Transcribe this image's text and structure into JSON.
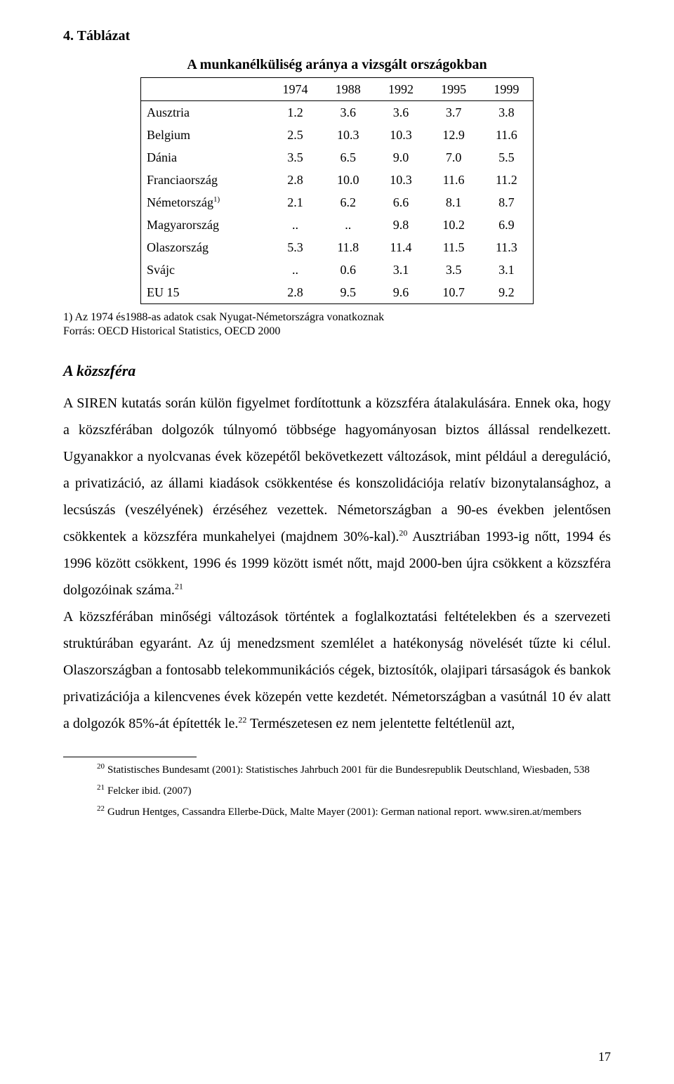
{
  "table_label": "4. Táblázat",
  "table": {
    "title": "A munkanélküliség aránya a vizsgált országokban",
    "columns": [
      "1974",
      "1988",
      "1992",
      "1995",
      "1999"
    ],
    "rows": [
      {
        "label": "Ausztria",
        "values": [
          "1.2",
          "3.6",
          "3.6",
          "3.7",
          "3.8"
        ]
      },
      {
        "label": "Belgium",
        "values": [
          "2.5",
          "10.3",
          "10.3",
          "12.9",
          "11.6"
        ]
      },
      {
        "label": "Dánia",
        "values": [
          "3.5",
          "6.5",
          "9.0",
          "7.0",
          "5.5"
        ]
      },
      {
        "label": "Franciaország",
        "values": [
          "2.8",
          "10.0",
          "10.3",
          "11.6",
          "11.2"
        ]
      },
      {
        "label": "Németország",
        "sup": "1)",
        "values": [
          "2.1",
          "6.2",
          "6.6",
          "8.1",
          "8.7"
        ]
      },
      {
        "label": "Magyarország",
        "values": [
          "..",
          "..",
          "9.8",
          "10.2",
          "6.9"
        ]
      },
      {
        "label": "Olaszország",
        "values": [
          "5.3",
          "11.8",
          "11.4",
          "11.5",
          "11.3"
        ]
      },
      {
        "label": "Svájc",
        "values": [
          "..",
          "0.6",
          "3.1",
          "3.5",
          "3.1"
        ]
      },
      {
        "label": "EU 15",
        "values": [
          "2.8",
          "9.5",
          "9.6",
          "10.7",
          "9.2"
        ]
      }
    ],
    "footnote": "1) Az 1974 és1988-as adatok csak Nyugat-Németországra vonatkoznak",
    "source": "Forrás: OECD Historical Statistics, OECD 2000"
  },
  "section_heading": "A közszféra",
  "paragraph_1": "A SIREN kutatás során külön figyelmet fordítottunk a közszféra átalakulására. Ennek oka, hogy a közszférában dolgozók túlnyomó többsége hagyományosan biztos állással rendelkezett. Ugyanakkor a nyolcvanas évek közepétől bekövetkezett változások, mint például a dereguláció, a privatizáció, az állami kiadások csökkentése és konszolidációja relatív bizonytalansághoz, a lecsúszás (veszélyének) érzéséhez vezettek. Németországban a 90-es években jelentősen csökkentek a közszféra munkahelyei (majdnem 30%-kal).",
  "fn_ref_20": "20",
  "paragraph_2": " Ausztriában 1993-ig nőtt, 1994 és 1996 között csökkent, 1996 és 1999 között ismét nőtt, majd 2000-ben újra csökkent a közszféra dolgozóinak száma.",
  "fn_ref_21": "21",
  "paragraph_3": "A közszférában minőségi változások történtek a foglalkoztatási feltételekben és a szervezeti struktúrában egyaránt. Az új menedzsment szemlélet a hatékonyság növelését tűzte ki célul. Olaszországban a fontosabb telekommunikációs cégek, biztosítók, olajipari társaságok és bankok privatizációja a kilencvenes évek közepén vette kezdetét. Németországban a vasútnál 10 év alatt a dolgozók 85%-át építették le.",
  "fn_ref_22": "22",
  "paragraph_4": " Természetesen ez nem jelentette feltétlenül azt,",
  "footnotes": [
    {
      "num": "20",
      "text": "Statistisches Bundesamt (2001): Statistisches Jahrbuch 2001 für die Bundesrepublik Deutschland, Wiesbaden, 538"
    },
    {
      "num": "21",
      "text": "Felcker ibid. (2007)"
    },
    {
      "num": "22",
      "text": "Gudrun Hentges, Cassandra Ellerbe-Dück, Malte Mayer (2001): German national report. www.siren.at/members"
    }
  ],
  "page_number": "17"
}
